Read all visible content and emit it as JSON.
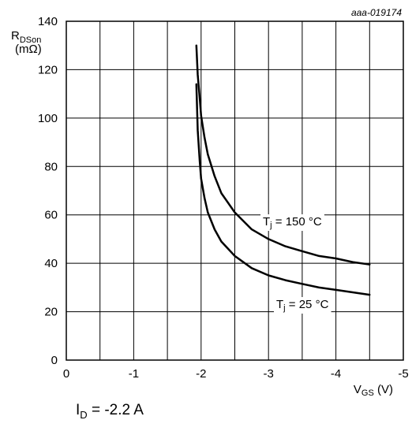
{
  "chart_data": {
    "type": "line",
    "reference": "aaa-019174",
    "xlabel": {
      "main": "V",
      "sub": "GS",
      "unit": " (V)"
    },
    "ylabel": {
      "main": "R",
      "sub": "DSon",
      "unit": "(mΩ)"
    },
    "xlim": [
      0,
      -5
    ],
    "ylim": [
      0,
      140
    ],
    "x_ticks": [
      0,
      -0.5,
      -1,
      -1.5,
      -2,
      -2.5,
      -3,
      -3.5,
      -4,
      -4.5,
      -5
    ],
    "x_tick_labels": [
      "0",
      "-1",
      "-2",
      "-3",
      "-4",
      "-5"
    ],
    "y_ticks": [
      0,
      20,
      40,
      60,
      80,
      100,
      120,
      140
    ],
    "grid": true,
    "series": [
      {
        "name": "Tj = 150 °C",
        "label_main": "T",
        "label_sub": "j",
        "label_rest": " = 150 °C",
        "x": [
          -1.93,
          -1.95,
          -1.98,
          -2.0,
          -2.05,
          -2.1,
          -2.2,
          -2.3,
          -2.5,
          -2.75,
          -3.0,
          -3.25,
          -3.5,
          -3.75,
          -4.0,
          -4.25,
          -4.5
        ],
        "y": [
          130,
          118,
          108,
          101,
          92,
          85,
          76,
          69,
          61,
          54,
          50,
          47,
          45,
          43,
          42,
          40.5,
          39.5
        ]
      },
      {
        "name": "Tj = 25 °C",
        "label_main": "T",
        "label_sub": "j",
        "label_rest": " = 25 °C",
        "x": [
          -1.93,
          -1.95,
          -1.98,
          -2.0,
          -2.05,
          -2.1,
          -2.2,
          -2.3,
          -2.5,
          -2.75,
          -3.0,
          -3.25,
          -3.5,
          -3.75,
          -4.0,
          -4.25,
          -4.5
        ],
        "y": [
          114,
          95,
          82,
          75,
          67,
          61,
          54,
          49,
          43,
          38,
          35,
          33,
          31.5,
          30,
          29,
          28,
          27
        ]
      }
    ]
  },
  "condition": {
    "main": "I",
    "sub": "D",
    "rest": " = -2.2 A"
  }
}
